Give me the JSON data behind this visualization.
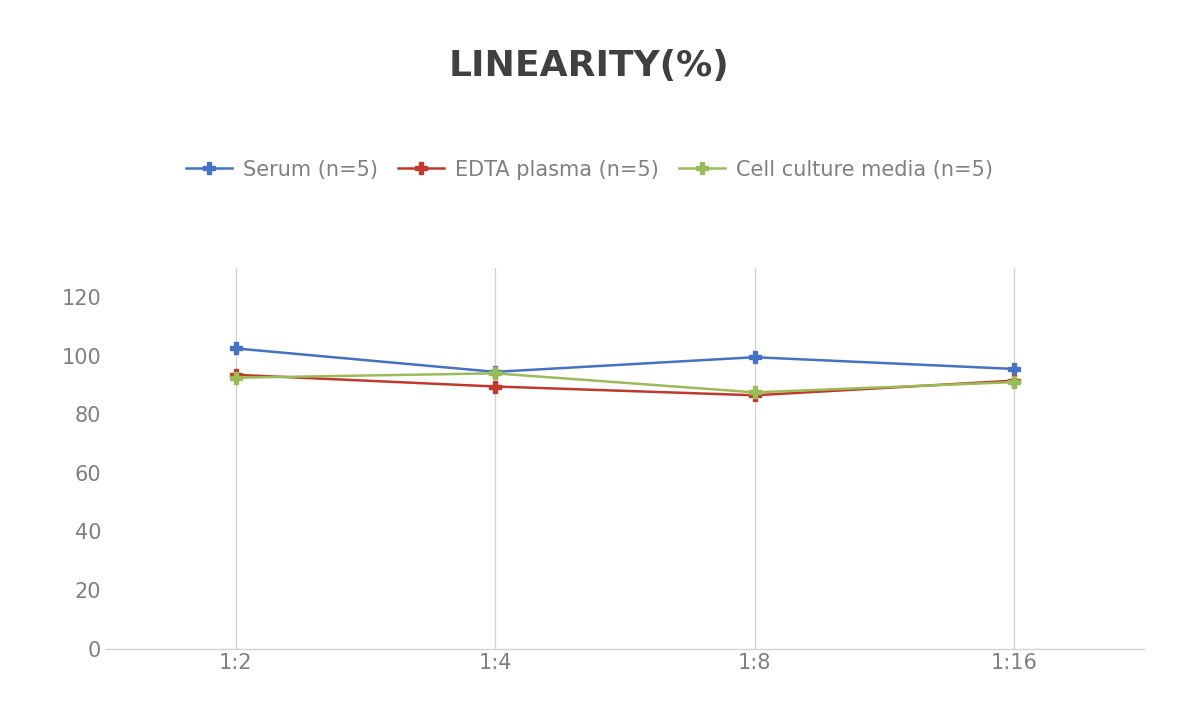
{
  "title": "LINEARITY(%)",
  "x_labels": [
    "1:2",
    "1:4",
    "1:8",
    "1:16"
  ],
  "x_values": [
    0,
    1,
    2,
    3
  ],
  "series": [
    {
      "label": "Serum (n=5)",
      "values": [
        102.5,
        94.5,
        99.5,
        95.5
      ],
      "color": "#4472C4",
      "marker": "P",
      "markersize": 9,
      "linewidth": 1.8
    },
    {
      "label": "EDTA plasma (n=5)",
      "values": [
        93.5,
        89.5,
        86.5,
        91.5
      ],
      "color": "#C0392B",
      "marker": "P",
      "markersize": 9,
      "linewidth": 1.8
    },
    {
      "label": "Cell culture media (n=5)",
      "values": [
        92.5,
        94.0,
        87.5,
        91.0
      ],
      "color": "#9BBB59",
      "marker": "P",
      "markersize": 9,
      "linewidth": 1.8
    }
  ],
  "ylim": [
    0,
    130
  ],
  "yticks": [
    0,
    20,
    40,
    60,
    80,
    100,
    120
  ],
  "background_color": "#FFFFFF",
  "grid_color": "#D3D3D3",
  "title_fontsize": 26,
  "legend_fontsize": 15,
  "tick_fontsize": 15,
  "title_color": "#404040",
  "tick_color": "#808080"
}
